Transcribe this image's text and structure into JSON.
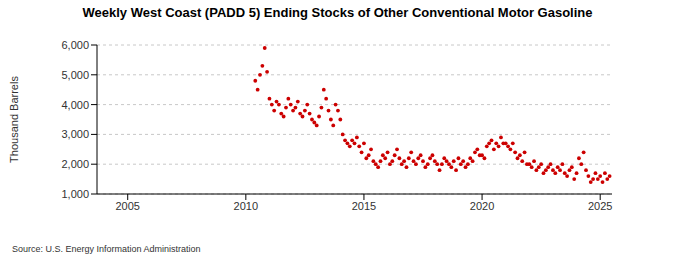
{
  "chart_data": {
    "type": "scatter",
    "title": "Weekly West Coast (PADD 5) Ending Stocks of Other Conventional Motor Gasoline",
    "y_label": "Thousand Barrels",
    "annotations": [
      "Source: U.S. Energy Information Administration"
    ],
    "color": "#cc0000",
    "marker": "circle",
    "grid": true,
    "xlim": [
      2003.7,
      2025.5
    ],
    "xticks": [
      2005,
      2010,
      2015,
      2020,
      2025
    ],
    "ylim": [
      1000,
      6000
    ],
    "yticks": [
      {
        "value": 1000,
        "label": "1,000"
      },
      {
        "value": 2000,
        "label": "2,000"
      },
      {
        "value": 3000,
        "label": "3,000"
      },
      {
        "value": 4000,
        "label": "4,000"
      },
      {
        "value": 5000,
        "label": "5,000"
      },
      {
        "value": 6000,
        "label": "6,000"
      }
    ],
    "x": [
      2010.4,
      2010.5,
      2010.6,
      2010.7,
      2010.8,
      2010.9,
      2011.0,
      2011.1,
      2011.2,
      2011.3,
      2011.4,
      2011.5,
      2011.6,
      2011.7,
      2011.8,
      2011.9,
      2012.0,
      2012.1,
      2012.2,
      2012.3,
      2012.4,
      2012.5,
      2012.6,
      2012.7,
      2012.8,
      2012.9,
      2013.0,
      2013.1,
      2013.2,
      2013.3,
      2013.4,
      2013.5,
      2013.6,
      2013.7,
      2013.8,
      2013.9,
      2014.0,
      2014.1,
      2014.2,
      2014.3,
      2014.4,
      2014.5,
      2014.6,
      2014.7,
      2014.8,
      2014.9,
      2015.0,
      2015.1,
      2015.2,
      2015.3,
      2015.4,
      2015.5,
      2015.6,
      2015.7,
      2015.8,
      2015.9,
      2016.0,
      2016.1,
      2016.2,
      2016.3,
      2016.4,
      2016.5,
      2016.6,
      2016.7,
      2016.8,
      2016.9,
      2017.0,
      2017.1,
      2017.2,
      2017.3,
      2017.4,
      2017.5,
      2017.6,
      2017.7,
      2017.8,
      2017.9,
      2018.0,
      2018.1,
      2018.2,
      2018.3,
      2018.4,
      2018.5,
      2018.6,
      2018.7,
      2018.8,
      2018.9,
      2019.0,
      2019.1,
      2019.2,
      2019.3,
      2019.4,
      2019.5,
      2019.6,
      2019.7,
      2019.8,
      2019.9,
      2020.0,
      2020.1,
      2020.2,
      2020.3,
      2020.4,
      2020.5,
      2020.6,
      2020.7,
      2020.8,
      2020.9,
      2021.0,
      2021.1,
      2021.2,
      2021.3,
      2021.4,
      2021.5,
      2021.6,
      2021.7,
      2021.8,
      2021.9,
      2022.0,
      2022.1,
      2022.2,
      2022.3,
      2022.4,
      2022.5,
      2022.6,
      2022.7,
      2022.8,
      2022.9,
      2023.0,
      2023.1,
      2023.2,
      2023.3,
      2023.4,
      2023.5,
      2023.6,
      2023.7,
      2023.8,
      2023.9,
      2024.0,
      2024.1,
      2024.2,
      2024.3,
      2024.4,
      2024.5,
      2024.6,
      2024.7,
      2024.8,
      2024.9,
      2025.0,
      2025.1,
      2025.2,
      2025.3,
      2025.4
    ],
    "values": [
      4800,
      4500,
      5000,
      5300,
      5900,
      5100,
      4200,
      4000,
      3800,
      4100,
      4000,
      3700,
      3600,
      3900,
      4200,
      4000,
      3800,
      3900,
      4100,
      3700,
      3600,
      3800,
      4000,
      3700,
      3500,
      3400,
      3300,
      3600,
      3900,
      4500,
      4200,
      3800,
      3500,
      3300,
      4000,
      3800,
      3500,
      3000,
      2800,
      2700,
      2600,
      2800,
      2700,
      2900,
      2600,
      2400,
      2700,
      2200,
      2300,
      2500,
      2100,
      2000,
      1900,
      2100,
      2300,
      2200,
      2400,
      2000,
      2100,
      2300,
      2500,
      2200,
      2000,
      2100,
      1900,
      2200,
      2400,
      2100,
      2000,
      2200,
      2300,
      2100,
      1900,
      2000,
      2200,
      2300,
      2100,
      2000,
      1800,
      2000,
      2200,
      2100,
      2000,
      1900,
      2100,
      1800,
      2200,
      2000,
      2100,
      1900,
      2000,
      2200,
      2100,
      2400,
      2500,
      2300,
      2300,
      2200,
      2600,
      2700,
      2800,
      2500,
      2700,
      2600,
      2900,
      2700,
      2700,
      2600,
      2500,
      2700,
      2400,
      2200,
      2300,
      2100,
      2400,
      2000,
      2000,
      1900,
      2100,
      1800,
      1900,
      2000,
      1700,
      1800,
      1900,
      2000,
      1800,
      1700,
      1900,
      1800,
      2000,
      1700,
      1600,
      1800,
      1900,
      1500,
      1700,
      2200,
      2000,
      2400,
      1800,
      1600,
      1400,
      1500,
      1700,
      1500,
      1600,
      1400,
      1700,
      1500,
      1600
    ]
  }
}
